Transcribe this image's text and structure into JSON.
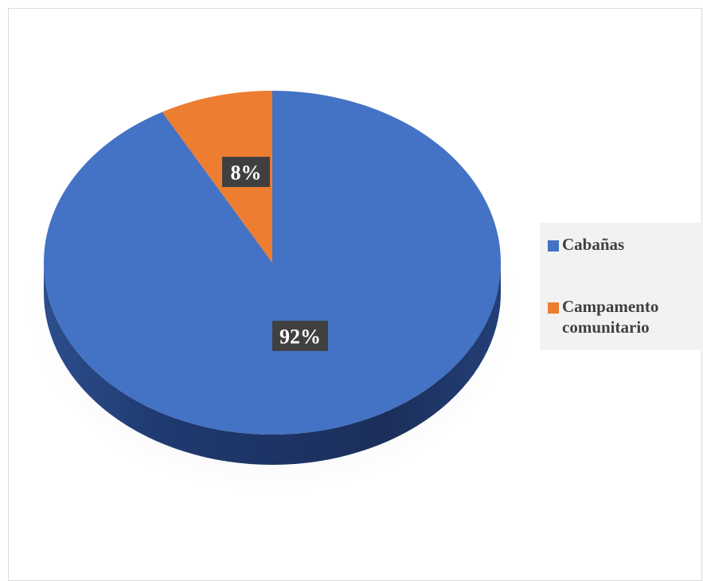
{
  "chart_data": {
    "type": "pie",
    "title": "",
    "categories": [
      "Cabañas",
      "Campamento comunitario"
    ],
    "values": [
      92,
      8
    ],
    "data_labels": [
      "92%",
      "8%"
    ],
    "colors": [
      "#4472c4",
      "#ed7d31"
    ],
    "legend_position": "right",
    "style": "3d"
  },
  "legend": {
    "items": [
      {
        "label": "Cabañas",
        "color": "#4472c4"
      },
      {
        "label_line1": "Campamento",
        "label_line2": "comunitario",
        "color": "#ed7d31"
      }
    ]
  }
}
